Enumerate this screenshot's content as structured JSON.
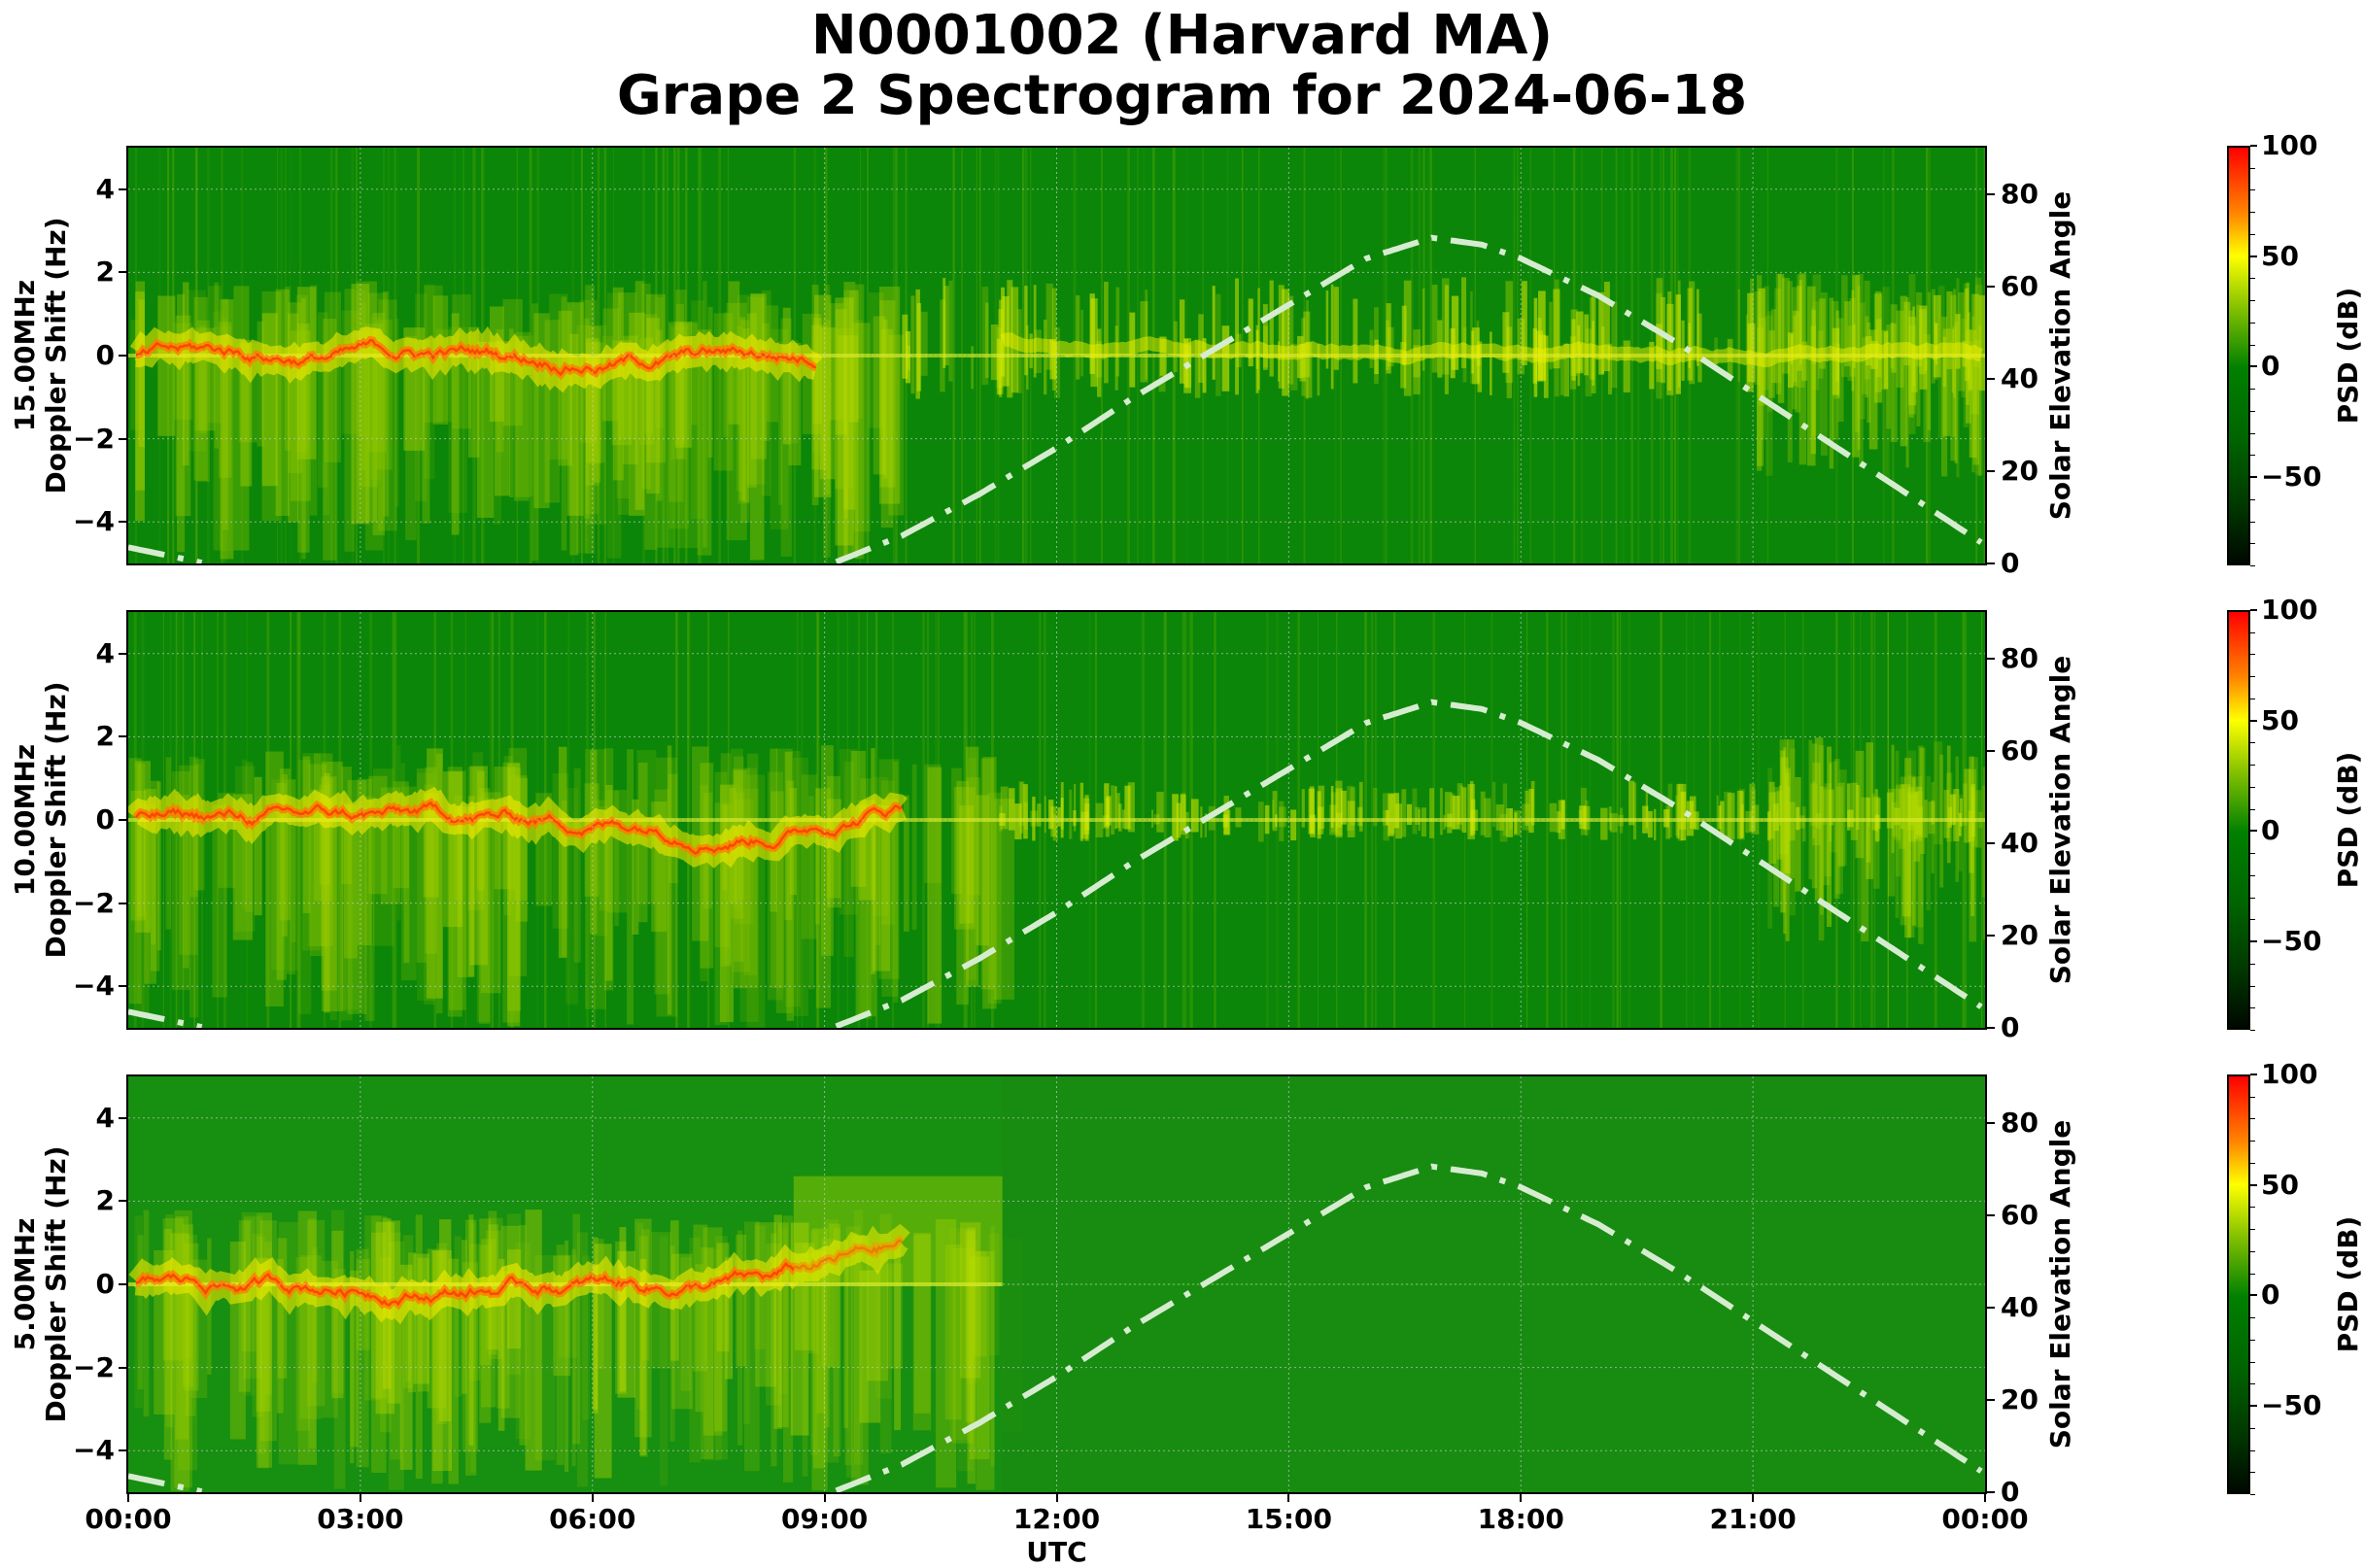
{
  "title": {
    "line1": "N0001002 (Harvard MA)",
    "line2": "Grape 2 Spectrogram for 2024-06-18"
  },
  "xaxis": {
    "label": "UTC",
    "ticks": [
      "00:00",
      "03:00",
      "06:00",
      "09:00",
      "12:00",
      "15:00",
      "18:00",
      "21:00",
      "00:00"
    ]
  },
  "panels": [
    {
      "frequency_label": "15.00MHz",
      "ylabel": "Doppler Shift (Hz)",
      "yticks": [
        "4",
        "2",
        "0",
        "−2",
        "−4"
      ],
      "right_ylabel": "Solar Elevation Angle",
      "right_yticks": [
        "80",
        "60",
        "40",
        "20",
        "0"
      ],
      "colorbar": {
        "label": "PSD (dB)",
        "ticks": [
          "100",
          "50",
          "0",
          "−50"
        ]
      }
    },
    {
      "frequency_label": "10.00MHz",
      "ylabel": "Doppler Shift (Hz)",
      "yticks": [
        "4",
        "2",
        "0",
        "−2",
        "−4"
      ],
      "right_ylabel": "Solar Elevation Angle",
      "right_yticks": [
        "80",
        "60",
        "40",
        "20",
        "0"
      ],
      "colorbar": {
        "label": "PSD (dB)",
        "ticks": [
          "100",
          "50",
          "0",
          "−50"
        ]
      }
    },
    {
      "frequency_label": "5.00MHz",
      "ylabel": "Doppler Shift (Hz)",
      "yticks": [
        "4",
        "2",
        "0",
        "−2",
        "−4"
      ],
      "right_ylabel": "Solar Elevation Angle",
      "right_yticks": [
        "80",
        "60",
        "40",
        "20",
        "0"
      ],
      "colorbar": {
        "label": "PSD (dB)",
        "ticks": [
          "100",
          "50",
          "0",
          "−50"
        ]
      }
    }
  ],
  "colors": {
    "background_green": "#0a8a0a",
    "signal_yellow": "#e8f000",
    "signal_orange": "#ff8800",
    "signal_red": "#ff2200",
    "solar_curve": "#d8ecd0"
  },
  "chart_data": [
    {
      "type": "heatmap",
      "title": "N0001002 (Harvard MA) Grape 2 Spectrogram for 2024-06-18 — 15.00MHz",
      "xlabel": "UTC",
      "ylabel": "15.00MHz Doppler Shift (Hz)",
      "x_ticks": [
        "00:00",
        "03:00",
        "06:00",
        "09:00",
        "12:00",
        "15:00",
        "18:00",
        "21:00",
        "00:00"
      ],
      "xlim_hours": [
        0,
        24
      ],
      "ylim": [
        -5,
        5
      ],
      "yticks": [
        -4,
        -2,
        0,
        2,
        4
      ],
      "colorbar": {
        "label": "PSD (dB)",
        "range": [
          -90,
          100
        ],
        "ticks": [
          -50,
          0,
          50,
          100
        ],
        "colormap": "black-green-yellow-red"
      },
      "right_axis": {
        "label": "Solar Elevation Angle",
        "ylim": [
          0,
          90
        ],
        "ticks": [
          0,
          20,
          40,
          60,
          80
        ]
      },
      "grid": true,
      "description": "Strong carrier trace near 0 Hz throughout the day; orange/red (70-90 dB) wandering trace 00:00-09:00 between -1 and +0.5 Hz; diffuse spread extending to -5 Hz at night; quieter daytime green background with yellow trace around 0 Hz.",
      "series": [
        {
          "name": "Solar Elevation Angle (deg)",
          "style": "dash-dot",
          "x_hours": [
            0,
            1,
            2,
            3,
            4,
            5,
            6,
            7,
            8,
            9.1,
            10,
            11,
            12,
            13,
            14,
            15,
            16,
            16.85,
            17.5,
            18,
            19,
            20,
            21,
            22,
            23,
            24
          ],
          "values": [
            3.5,
            0,
            0,
            0,
            0,
            0,
            0,
            0,
            0,
            0,
            6,
            15,
            25,
            36,
            46,
            56,
            66,
            70.5,
            69,
            66,
            58,
            48,
            37,
            26,
            15,
            4
          ]
        }
      ]
    },
    {
      "type": "heatmap",
      "title": "10.00MHz",
      "xlabel": "UTC",
      "ylabel": "10.00MHz Doppler Shift (Hz)",
      "x_ticks": [
        "00:00",
        "03:00",
        "06:00",
        "09:00",
        "12:00",
        "15:00",
        "18:00",
        "21:00",
        "00:00"
      ],
      "xlim_hours": [
        0,
        24
      ],
      "ylim": [
        -5,
        5
      ],
      "yticks": [
        -4,
        -2,
        0,
        2,
        4
      ],
      "colorbar": {
        "label": "PSD (dB)",
        "range": [
          -90,
          100
        ],
        "ticks": [
          -50,
          0,
          50,
          100
        ]
      },
      "right_axis": {
        "label": "Solar Elevation Angle",
        "ylim": [
          0,
          90
        ],
        "ticks": [
          0,
          20,
          40,
          60,
          80
        ]
      },
      "grid": true,
      "description": "Orange/red trace near 0 Hz from 00:00 to ~11:00 with yellow spread to -5 Hz; daytime thin carrier line at 0 Hz on green background.",
      "series": [
        {
          "name": "Solar Elevation Angle (deg)",
          "style": "dash-dot",
          "x_hours": [
            0,
            1,
            9.1,
            10,
            11,
            12,
            13,
            14,
            15,
            16,
            16.85,
            17.5,
            18,
            19,
            20,
            21,
            22,
            23,
            24
          ],
          "values": [
            3.5,
            0,
            0,
            6,
            15,
            25,
            36,
            46,
            56,
            66,
            70.5,
            69,
            66,
            58,
            48,
            37,
            26,
            15,
            4
          ]
        }
      ]
    },
    {
      "type": "heatmap",
      "title": "5.00MHz",
      "xlabel": "UTC",
      "ylabel": "5.00MHz Doppler Shift (Hz)",
      "x_ticks": [
        "00:00",
        "03:00",
        "06:00",
        "09:00",
        "12:00",
        "15:00",
        "18:00",
        "21:00",
        "00:00"
      ],
      "xlim_hours": [
        0,
        24
      ],
      "ylim": [
        -5,
        5
      ],
      "yticks": [
        -4,
        -2,
        0,
        2,
        4
      ],
      "colorbar": {
        "label": "PSD (dB)",
        "range": [
          -90,
          100
        ],
        "ticks": [
          -50,
          0,
          50,
          100
        ]
      },
      "right_axis": {
        "label": "Solar Elevation Angle",
        "ylim": [
          0,
          90
        ],
        "ticks": [
          0,
          20,
          40,
          60,
          80
        ]
      },
      "grid": true,
      "description": "Yellow/orange nighttime trace near 0 Hz from ~01:00 to ~11:20 with broad spread; sharp cutoff ~11:20 UTC; daytime uniform green.",
      "series": [
        {
          "name": "Solar Elevation Angle (deg)",
          "style": "dash-dot",
          "x_hours": [
            0,
            1,
            9.1,
            10,
            11,
            12,
            13,
            14,
            15,
            16,
            16.85,
            17.5,
            18,
            19,
            20,
            21,
            22,
            23,
            24
          ],
          "values": [
            3.5,
            0,
            0,
            6,
            15,
            25,
            36,
            46,
            56,
            66,
            70.5,
            69,
            66,
            58,
            48,
            37,
            26,
            15,
            4
          ]
        }
      ]
    }
  ]
}
